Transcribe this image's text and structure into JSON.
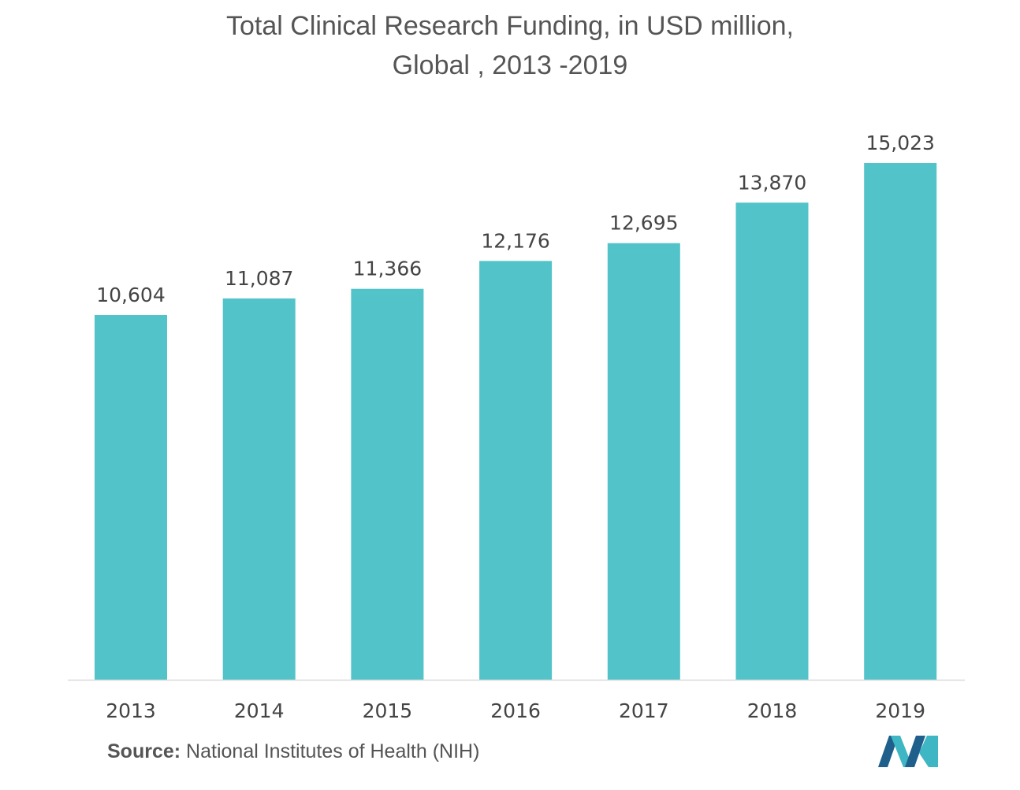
{
  "title": {
    "line1": "Total Clinical Research Funding, in USD million,",
    "line2": "Global , 2013 -2019"
  },
  "source": {
    "label": "Source:",
    "text": "National Institutes of Health (NIH)"
  },
  "logo": {
    "icon": "mordor-intelligence-logo-icon",
    "colors": [
      "#1f5f8b",
      "#3fb6c4"
    ]
  },
  "chart_data": {
    "type": "bar",
    "categories": [
      "2013",
      "2014",
      "2015",
      "2016",
      "2017",
      "2018",
      "2019"
    ],
    "values": [
      10604,
      11087,
      11366,
      12176,
      12695,
      13870,
      15023
    ],
    "value_labels": [
      "10,604",
      "11,087",
      "11,366",
      "12,176",
      "12,695",
      "13,870",
      "15,023"
    ],
    "title": "Total Clinical Research Funding, in USD million, Global , 2013 -2019",
    "xlabel": "",
    "ylabel": "",
    "ylim": [
      0,
      15023
    ],
    "grid": false,
    "legend": "none",
    "bar_color": "#52c3c8",
    "axis_color": "#d9d9d9"
  }
}
